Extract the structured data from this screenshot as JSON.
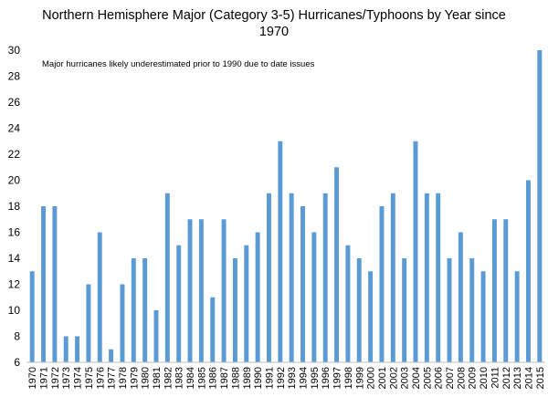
{
  "chart_data": {
    "type": "bar",
    "title": "Northern Hemisphere  Major (Category 3-5) Hurricanes/Typhoons  by Year since 1970",
    "title_lines": [
      "Northern Hemisphere  Major (Category 3-5) Hurricanes/Typhoons  by Year since",
      "1970"
    ],
    "annotation": "Major hurricanes likely underestimated prior to 1990  due to date issues",
    "xlabel": "",
    "ylabel": "",
    "ylim": [
      6,
      30
    ],
    "ytick_step": 2,
    "grid": false,
    "legend": "none",
    "bar_color": "#5b9bd5",
    "categories": [
      "1970",
      "1971",
      "1972",
      "1973",
      "1974",
      "1975",
      "1976",
      "1977",
      "1978",
      "1979",
      "1980",
      "1981",
      "1982",
      "1983",
      "1984",
      "1985",
      "1986",
      "1987",
      "1988",
      "1989",
      "1990",
      "1991",
      "1992",
      "1993",
      "1994",
      "1995",
      "1996",
      "1997",
      "1998",
      "1999",
      "2000",
      "2001",
      "2002",
      "2003",
      "2004",
      "2005",
      "2006",
      "2007",
      "2008",
      "2009",
      "2010",
      "2011",
      "2012",
      "2013",
      "2014",
      "2015"
    ],
    "values": [
      13,
      18,
      18,
      8,
      8,
      12,
      16,
      7,
      12,
      14,
      14,
      10,
      19,
      15,
      17,
      17,
      11,
      17,
      14,
      15,
      16,
      19,
      23,
      19,
      18,
      16,
      19,
      21,
      15,
      14,
      13,
      18,
      19,
      14,
      23,
      19,
      19,
      14,
      16,
      14,
      13,
      17,
      17,
      13,
      20,
      30
    ]
  }
}
